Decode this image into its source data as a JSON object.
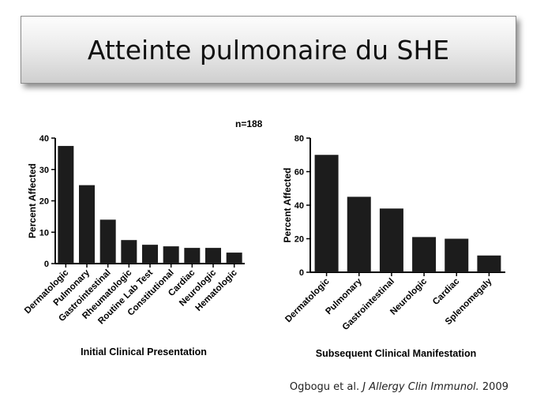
{
  "title": "Atteinte pulmonaire du SHE",
  "n_label": "n=188",
  "citation": {
    "authors": "Ogbogu et al.",
    "journal": "J Allergy Clin Immunol.",
    "year": "2009"
  },
  "colors": {
    "bar": "#1c1c1c",
    "axis": "#000000"
  },
  "chart_data": [
    {
      "type": "bar",
      "title": "",
      "xlabel": "Initial Clinical Presentation",
      "ylabel": "Percent Affected",
      "ylim": [
        0,
        40
      ],
      "yticks": [
        0,
        10,
        20,
        30,
        40
      ],
      "grid": false,
      "categories": [
        "Dermatologic",
        "Pulmonary",
        "Gastrointestinal",
        "Rheumatologic",
        "Routine Lab Test",
        "Constitutional",
        "Cardiac",
        "Neurologic",
        "Hematologic"
      ],
      "values": [
        37.5,
        25,
        14,
        7.5,
        6,
        5.5,
        5,
        5,
        3.5
      ]
    },
    {
      "type": "bar",
      "title": "",
      "xlabel": "Subsequent Clinical Manifestation",
      "ylabel": "Percent Affected",
      "ylim": [
        0,
        80
      ],
      "yticks": [
        0,
        20,
        40,
        60,
        80
      ],
      "grid": false,
      "categories": [
        "Dermatologic",
        "Pulmonary",
        "Gastrointestinal",
        "Neurologic",
        "Cardiac",
        "Splenomegaly"
      ],
      "values": [
        70,
        45,
        38,
        21,
        20,
        10
      ]
    }
  ]
}
